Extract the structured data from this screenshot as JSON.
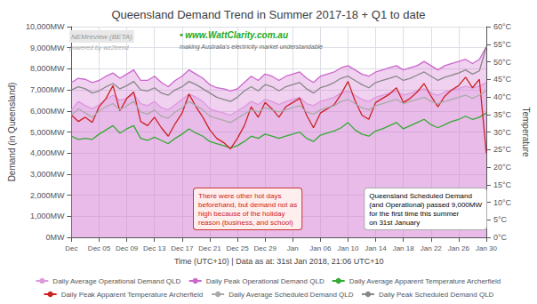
{
  "chart_data": {
    "type": "line",
    "title": "Queensland Demand Trend in Summer 2017-18 + Q1 to date",
    "x_label": "Time (UTC+10) | Data as at: 31st Jan 2018, 21:06 UTC+10",
    "y_label": "Demand (in Queensland)",
    "y2_label": "Temperature",
    "categories": [
      "Dec",
      null,
      null,
      null,
      "Dec 05",
      null,
      null,
      null,
      "Dec 09",
      null,
      null,
      null,
      "Dec 13",
      null,
      null,
      null,
      "Dec 17",
      null,
      null,
      null,
      "Dec 21",
      null,
      null,
      null,
      "Dec 25",
      null,
      null,
      null,
      "Dec 29",
      null,
      null,
      null,
      "Jan",
      null,
      null,
      null,
      "Jan 06",
      null,
      null,
      null,
      "Jan 10",
      null,
      null,
      null,
      "Jan 14",
      null,
      null,
      null,
      "Jan 18",
      null,
      null,
      null,
      "Jan 22",
      null,
      null,
      null,
      "Jan 26",
      null,
      null,
      null,
      "Jan 30"
    ],
    "series": [
      {
        "name": "Daily Average Operational Demand QLD",
        "type": "area",
        "color": "#dd99dd",
        "values": [
          6050,
          6450,
          6250,
          6100,
          6300,
          6550,
          6750,
          6500,
          6600,
          6800,
          6350,
          6250,
          6450,
          6150,
          6050,
          6300,
          6550,
          6800,
          6650,
          6450,
          6100,
          6000,
          5900,
          5800,
          6000,
          6200,
          6450,
          6300,
          6550,
          6450,
          6300,
          6450,
          6550,
          6650,
          6350,
          6250,
          6450,
          6550,
          6650,
          6850,
          6950,
          6750,
          6550,
          6450,
          6650,
          6750,
          6850,
          6950,
          6750,
          6850,
          6950,
          7050,
          6850,
          6750,
          6900,
          6980,
          7060,
          7180,
          7080,
          7180,
          7350
        ]
      },
      {
        "name": "Daily Peak Operational Demand QLD",
        "type": "area",
        "color": "#cc66cc",
        "values": [
          7350,
          7550,
          7500,
          7350,
          7450,
          7650,
          7800,
          7550,
          7750,
          7950,
          7450,
          7450,
          7650,
          7350,
          7150,
          7450,
          7650,
          7950,
          7750,
          7550,
          7250,
          7100,
          7050,
          6950,
          7050,
          7350,
          7650,
          7450,
          7750,
          7650,
          7450,
          7650,
          7750,
          7850,
          7550,
          7350,
          7650,
          7750,
          7850,
          8050,
          8150,
          7950,
          7750,
          7650,
          7850,
          7950,
          8050,
          8150,
          7950,
          8050,
          8150,
          8350,
          8150,
          7950,
          8150,
          8250,
          8350,
          8450,
          8250,
          8450,
          9050
        ]
      },
      {
        "name": "Daily Average Apparent Temperature Archerfield",
        "type": "line",
        "color": "#33aa33",
        "values": [
          4800,
          4650,
          4700,
          4650,
          4900,
          5100,
          5300,
          4950,
          5150,
          5300,
          4700,
          4600,
          4750,
          4600,
          4450,
          4700,
          4900,
          5150,
          4950,
          4800,
          4550,
          4450,
          4350,
          4250,
          4350,
          4550,
          4800,
          4700,
          4900,
          4800,
          4700,
          4800,
          4900,
          5000,
          4700,
          4550,
          4850,
          4950,
          5050,
          5200,
          5450,
          5100,
          4900,
          4800,
          5050,
          5150,
          5300,
          5450,
          5150,
          5300,
          5450,
          5600,
          5350,
          5200,
          5350,
          5500,
          5600,
          5750,
          5600,
          5700,
          5900
        ]
      },
      {
        "name": "Daily Peak Apparent Temperature Archerfield",
        "type": "line",
        "color": "#cc2222",
        "values": [
          5800,
          5500,
          5700,
          5450,
          6200,
          6600,
          7200,
          6000,
          6600,
          6900,
          5500,
          5300,
          5700,
          5200,
          4800,
          5400,
          5900,
          6800,
          6200,
          5700,
          5100,
          4700,
          4500,
          4200,
          4700,
          5300,
          6200,
          5700,
          6400,
          6100,
          5700,
          6200,
          6400,
          6600,
          5800,
          5200,
          5900,
          6100,
          6300,
          6800,
          7400,
          6500,
          5800,
          5600,
          6400,
          6600,
          6800,
          7100,
          6400,
          6600,
          6900,
          7300,
          6700,
          6200,
          6700,
          7000,
          7200,
          7600,
          7100,
          7500,
          4000
        ]
      },
      {
        "name": "Daily Average Scheduled Demand QLD",
        "type": "line",
        "color": "#aaaaaa",
        "values": [
          5800,
          6100,
          5900,
          5700,
          6000,
          6200,
          6350,
          6050,
          6250,
          6450,
          5950,
          5850,
          6050,
          5750,
          5650,
          5950,
          6150,
          6450,
          6250,
          6050,
          5750,
          5650,
          5550,
          5450,
          5650,
          5850,
          6050,
          5950,
          6150,
          6050,
          5950,
          6050,
          6150,
          6250,
          5950,
          5850,
          6050,
          6150,
          6250,
          6450,
          6550,
          6350,
          6150,
          6050,
          6250,
          6350,
          6450,
          6550,
          6350,
          6450,
          6550,
          6650,
          6450,
          6350,
          6450,
          6550,
          6650,
          6750,
          6600,
          6750,
          6950
        ]
      },
      {
        "name": "Daily Peak Scheduled Demand QLD",
        "type": "line",
        "color": "#888888",
        "values": [
          7000,
          7150,
          7050,
          6850,
          6950,
          7150,
          7300,
          7050,
          7200,
          7400,
          7000,
          6950,
          7100,
          6850,
          6750,
          7000,
          7150,
          7400,
          7250,
          7050,
          6850,
          6650,
          6550,
          6450,
          6650,
          6950,
          7150,
          6950,
          7250,
          7150,
          6950,
          7150,
          7250,
          7350,
          7050,
          6850,
          7100,
          7200,
          7350,
          7550,
          7650,
          7450,
          7250,
          7100,
          7350,
          7450,
          7550,
          7650,
          7450,
          7550,
          7700,
          7850,
          7650,
          7450,
          7600,
          7700,
          7800,
          7950,
          7750,
          7900,
          9050
        ]
      }
    ],
    "ylim": [
      0,
      10000
    ],
    "yticks": [
      {
        "value": 0,
        "label": "0MW"
      },
      {
        "value": 1000,
        "label": "1,000MW"
      },
      {
        "value": 2000,
        "label": "2,000MW"
      },
      {
        "value": 3000,
        "label": "3,000MW"
      },
      {
        "value": 4000,
        "label": "4,000MW"
      },
      {
        "value": 5000,
        "label": "5,000MW"
      },
      {
        "value": 6000,
        "label": "6,000MW"
      },
      {
        "value": 7000,
        "label": "7,000MW"
      },
      {
        "value": 8000,
        "label": "8,000MW"
      },
      {
        "value": 9000,
        "label": "9,000MW"
      },
      {
        "value": 10000,
        "label": "10,000MW"
      }
    ],
    "y2lim": [
      0,
      60
    ],
    "y2ticks": [
      {
        "value": 0,
        "label": "0°C"
      },
      {
        "value": 5,
        "label": "5°C"
      },
      {
        "value": 10,
        "label": "10°C"
      },
      {
        "value": 15,
        "label": "15°C"
      },
      {
        "value": 20,
        "label": "20°C"
      },
      {
        "value": 25,
        "label": "25°C"
      },
      {
        "value": 30,
        "label": "30°C"
      },
      {
        "value": 35,
        "label": "35°C"
      },
      {
        "value": 40,
        "label": "40°C"
      },
      {
        "value": 45,
        "label": "45°C"
      },
      {
        "value": 50,
        "label": "50°C"
      },
      {
        "value": 55,
        "label": "55°C"
      },
      {
        "value": 60,
        "label": "60°C"
      }
    ],
    "grid": true,
    "legend": "bottom",
    "annotations": [
      "NEMreview (BETA)",
      "powered by wz2trend",
      "• www.WattClarity.com.au",
      "making Australia's electricity market understandable",
      "There were other hot days\nbeforehand, but demand not as\nhigh because of the holiday\nreason (business, and school)",
      "Queensland Scheduled Demand\n(and Operational) passed 9,000MW\nfor the first time this summer\non 31st January"
    ]
  }
}
